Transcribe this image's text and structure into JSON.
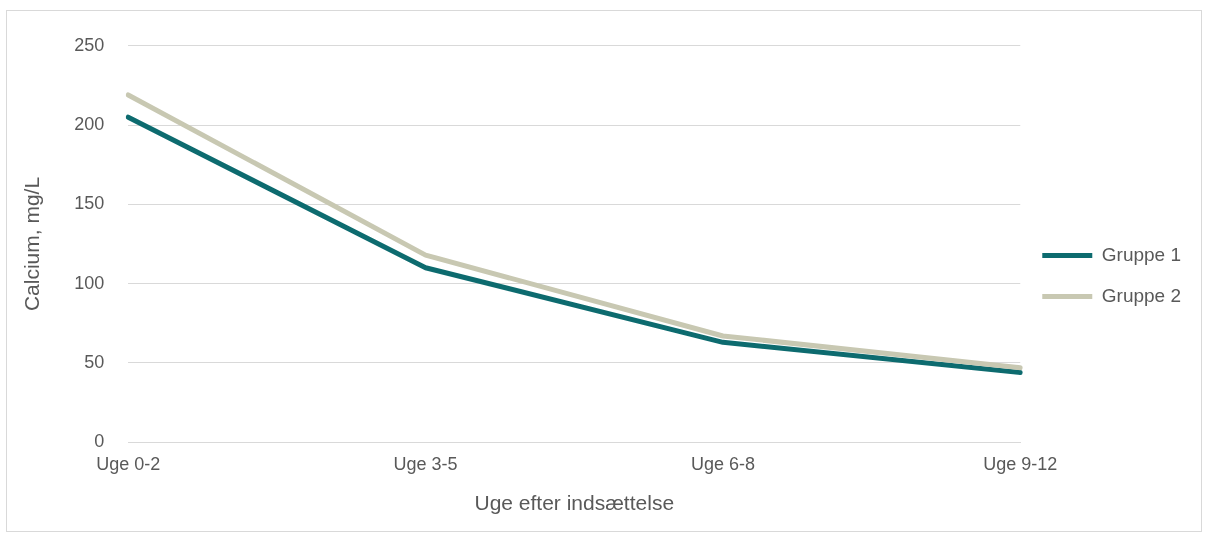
{
  "chart_data": {
    "type": "line",
    "xlabel": "Uge efter indsættelse",
    "ylabel": "Calcium, mg/L",
    "categories": [
      "Uge 0-2",
      "Uge 3-5",
      "Uge 6-8",
      "Uge 9-12"
    ],
    "series": [
      {
        "name": "Gruppe 1",
        "color": "#0d6b6f",
        "values": [
          205,
          110,
          63,
          44
        ]
      },
      {
        "name": "Gruppe 2",
        "color": "#c8c8b2",
        "values": [
          219,
          118,
          67,
          47
        ]
      }
    ],
    "ylim": [
      0,
      250
    ],
    "yticks": [
      0,
      50,
      100,
      150,
      200,
      250
    ],
    "grid": "y",
    "legend": "right",
    "marker": "none",
    "line_style": "solid"
  }
}
